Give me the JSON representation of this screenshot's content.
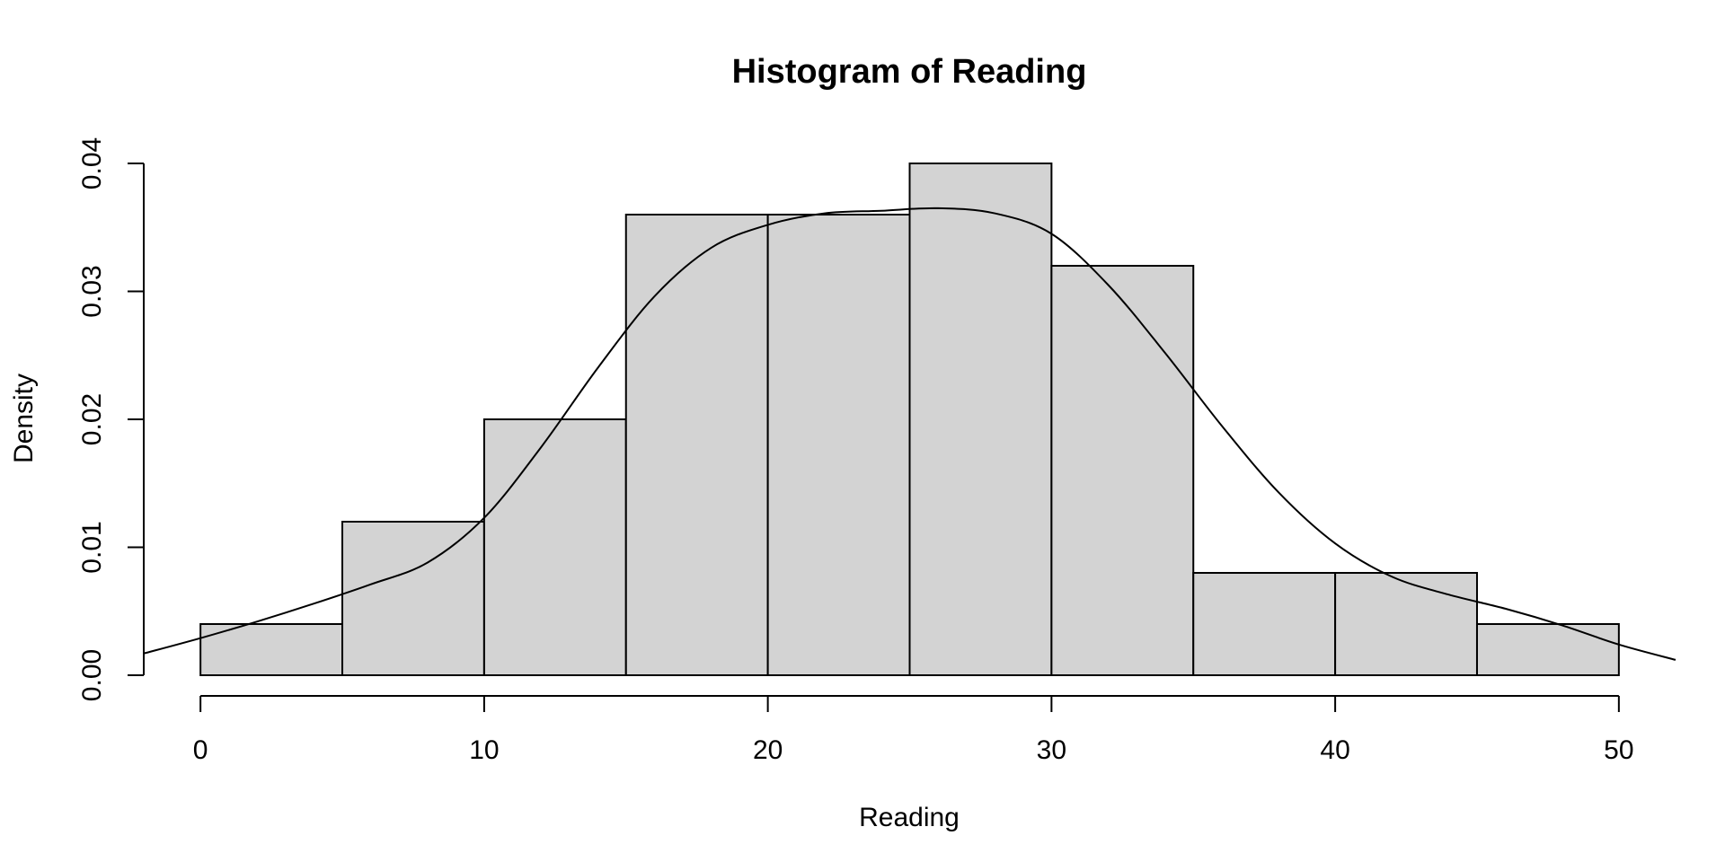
{
  "chart_data": {
    "type": "histogram",
    "title": "Histogram of Reading",
    "xlabel": "Reading",
    "ylabel": "Density",
    "xlim": [
      -2,
      52
    ],
    "ylim": [
      0,
      0.04
    ],
    "x_ticks": [
      0,
      10,
      20,
      30,
      40,
      50
    ],
    "x_tick_labels": [
      "0",
      "10",
      "20",
      "30",
      "40",
      "50"
    ],
    "y_ticks": [
      0,
      0.01,
      0.02,
      0.03,
      0.04
    ],
    "y_tick_labels": [
      "0.00",
      "0.01",
      "0.02",
      "0.03",
      "0.04"
    ],
    "bins": [
      {
        "start": 0,
        "end": 5,
        "density": 0.004
      },
      {
        "start": 5,
        "end": 10,
        "density": 0.012
      },
      {
        "start": 10,
        "end": 15,
        "density": 0.02
      },
      {
        "start": 15,
        "end": 20,
        "density": 0.036
      },
      {
        "start": 20,
        "end": 25,
        "density": 0.036
      },
      {
        "start": 25,
        "end": 30,
        "density": 0.04
      },
      {
        "start": 30,
        "end": 35,
        "density": 0.032
      },
      {
        "start": 35,
        "end": 40,
        "density": 0.008
      },
      {
        "start": 40,
        "end": 45,
        "density": 0.008
      },
      {
        "start": 45,
        "end": 50,
        "density": 0.004
      }
    ],
    "density_curve": {
      "x": [
        -2,
        0,
        2,
        4,
        6,
        8,
        10,
        12,
        14,
        16,
        18,
        20,
        22,
        24,
        26,
        28,
        30,
        32,
        34,
        36,
        38,
        40,
        42,
        44,
        46,
        48,
        50,
        52
      ],
      "y": [
        0.0017,
        0.0029,
        0.0042,
        0.0056,
        0.0071,
        0.0088,
        0.0123,
        0.0178,
        0.024,
        0.0296,
        0.0334,
        0.0352,
        0.0361,
        0.0363,
        0.0365,
        0.0361,
        0.0345,
        0.0305,
        0.0252,
        0.0195,
        0.0143,
        0.0103,
        0.0077,
        0.0063,
        0.0052,
        0.0039,
        0.0024,
        0.0012
      ]
    },
    "grid": false,
    "legend": "none"
  }
}
